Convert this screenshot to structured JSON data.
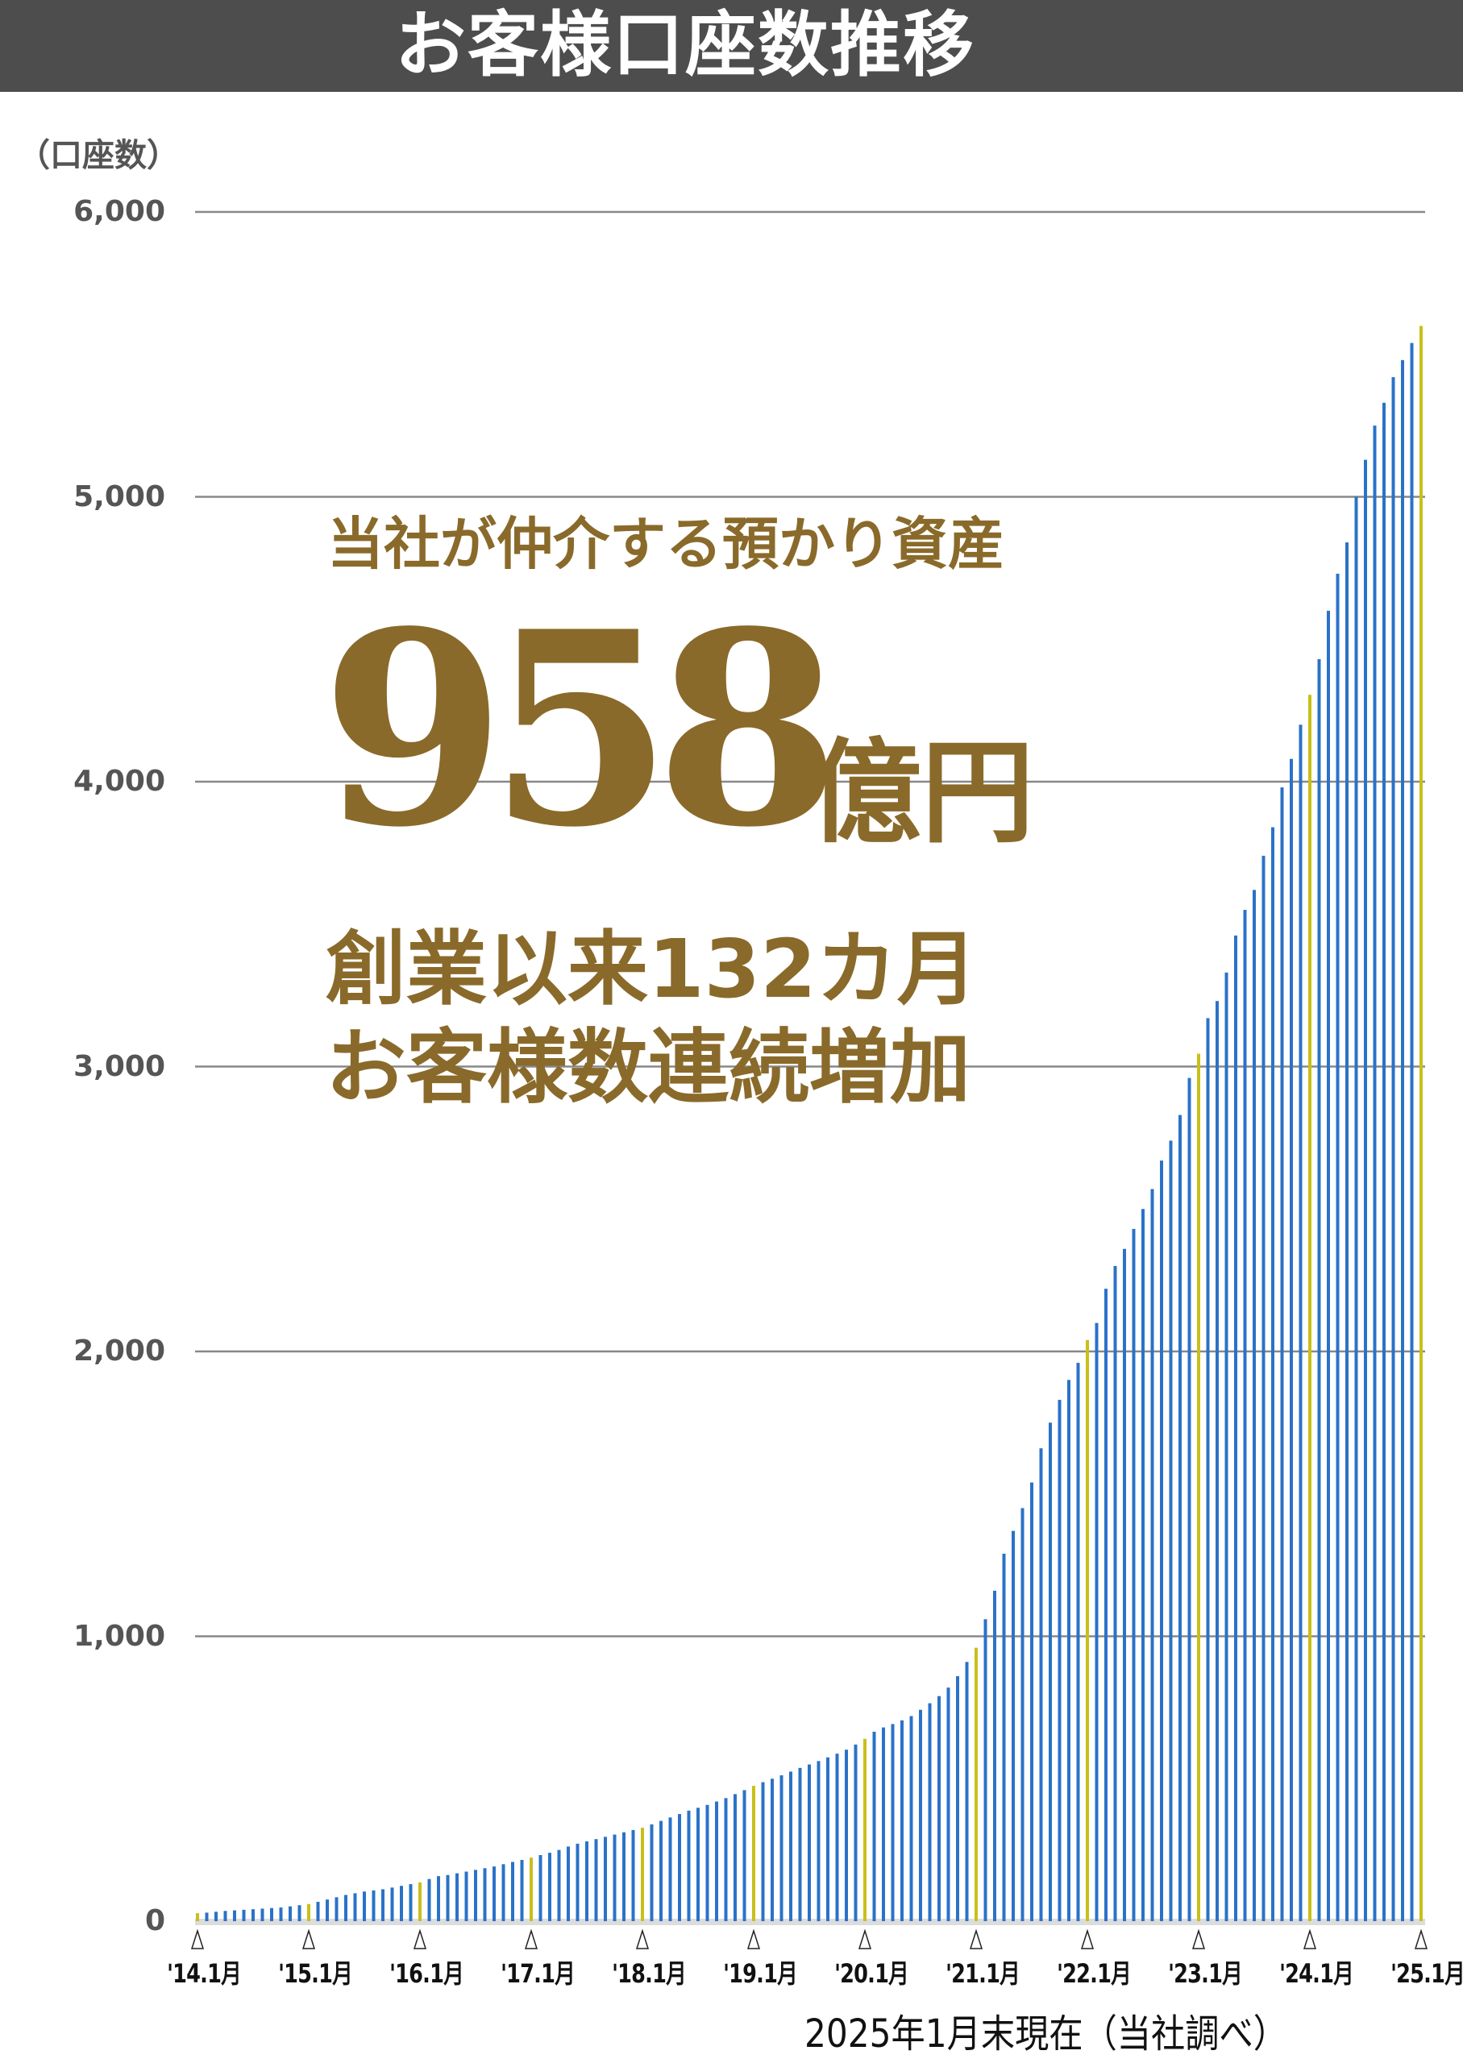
{
  "header": {
    "title": "お客様口座数推移"
  },
  "overlay": {
    "subtitle": "当社が仲介する預かり資産",
    "amount": "958",
    "amount_unit": "億円",
    "line1": "創業以来132カ月",
    "line2": "お客様数連続増加"
  },
  "note": "2025年1月末現在（当社調べ）",
  "colors": {
    "bar": "#2a72c8",
    "january_bar": "#c8c01a",
    "title_bg": "#4d4d4d",
    "highlight_text": "#8a6a2a",
    "grid": "#888888"
  },
  "chart_data": {
    "type": "bar",
    "ylabel": "（口座数）",
    "ylim": [
      0,
      6000
    ],
    "yticks": [
      "0",
      "1,000",
      "2,000",
      "3,000",
      "4,000",
      "5,000",
      "6,000"
    ],
    "ytick_values": [
      0,
      1000,
      2000,
      3000,
      4000,
      5000,
      6000
    ],
    "grid": true,
    "xtick_labels": [
      "'14.1月",
      "'15.1月",
      "'16.1月",
      "'17.1月",
      "'18.1月",
      "'19.1月",
      "'20.1月",
      "'21.1月",
      "'22.1月",
      "'23.1月",
      "'24.1月",
      "'25.1月"
    ],
    "x_start": "2014-01",
    "x_end": "2025-01",
    "frequency": "monthly",
    "highlight": "January bars in yellow",
    "values": [
      28,
      30,
      33,
      36,
      38,
      40,
      42,
      44,
      46,
      48,
      52,
      56,
      60,
      68,
      76,
      84,
      92,
      98,
      104,
      108,
      112,
      118,
      124,
      130,
      136,
      148,
      158,
      162,
      168,
      174,
      180,
      186,
      192,
      200,
      208,
      215,
      223,
      232,
      240,
      250,
      262,
      272,
      280,
      288,
      296,
      304,
      312,
      320,
      328,
      340,
      352,
      364,
      376,
      388,
      398,
      408,
      420,
      432,
      446,
      460,
      475,
      488,
      500,
      512,
      525,
      538,
      550,
      562,
      575,
      588,
      602,
      620,
      640,
      665,
      680,
      692,
      705,
      720,
      742,
      765,
      790,
      820,
      860,
      910,
      960,
      1060,
      1160,
      1290,
      1370,
      1450,
      1540,
      1660,
      1750,
      1830,
      1900,
      1960,
      2040,
      2100,
      2220,
      2300,
      2360,
      2430,
      2500,
      2570,
      2670,
      2740,
      2830,
      2960,
      3045,
      3170,
      3230,
      3330,
      3460,
      3550,
      3620,
      3740,
      3840,
      3980,
      4080,
      4200,
      4305,
      4430,
      4600,
      4730,
      4840,
      5000,
      5130,
      5250,
      5330,
      5420,
      5480,
      5540,
      5600
    ]
  }
}
